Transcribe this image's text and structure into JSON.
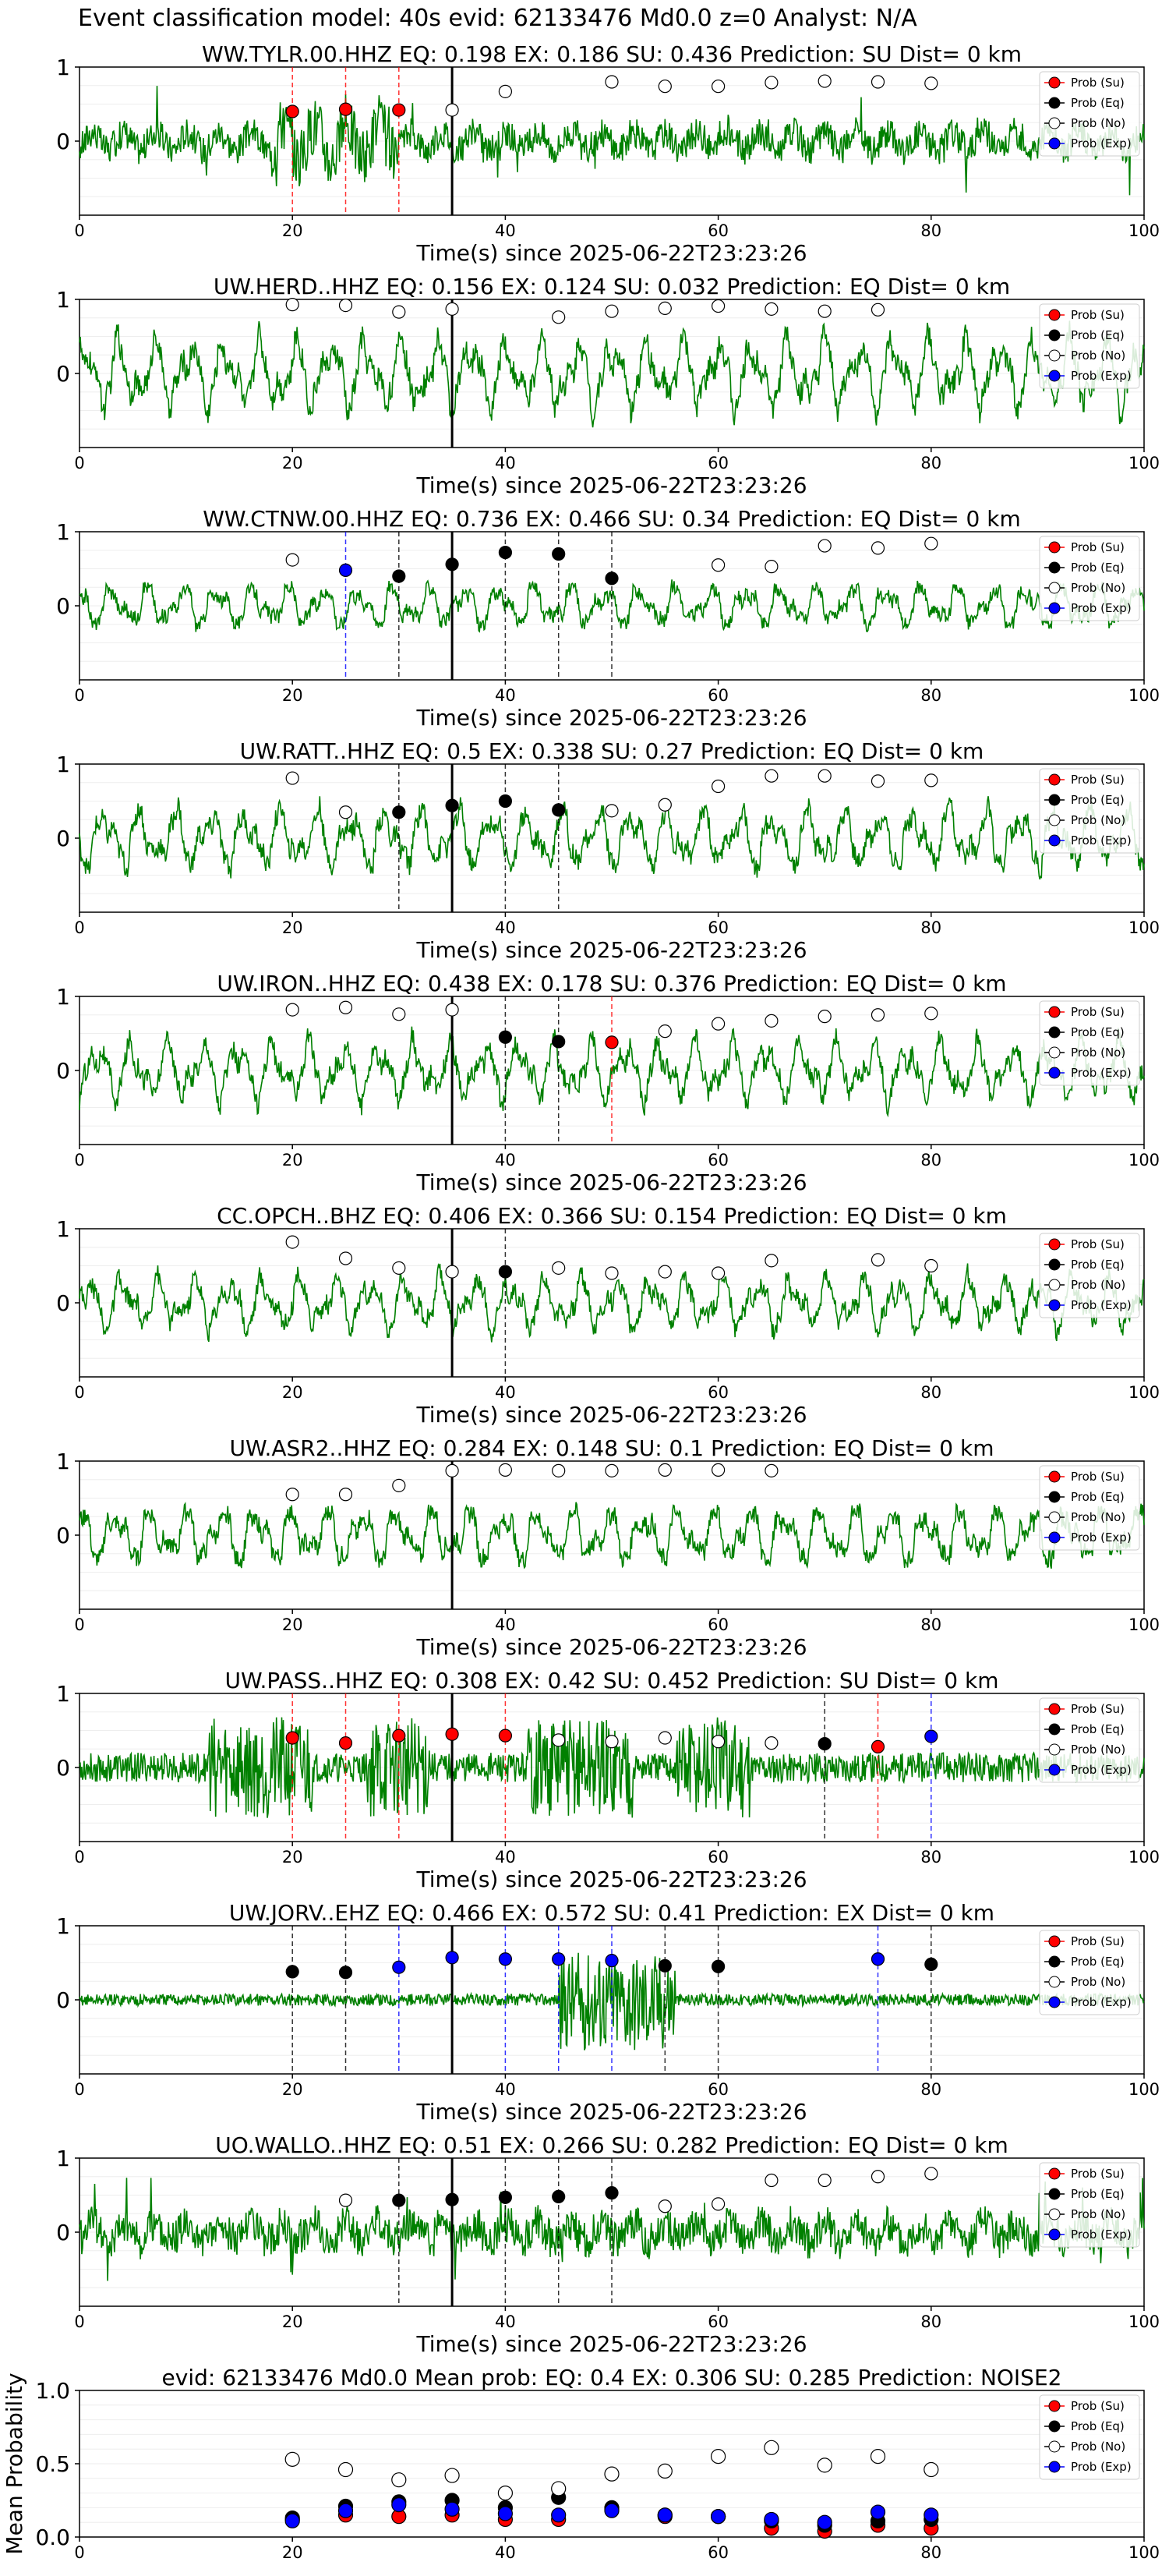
{
  "suptitle": "Event classification model: 40s evid: 62133476 Md0.0 z=0 Analyst: N/A",
  "colors": {
    "wave": "#008000",
    "su": "#ff0000",
    "eq": "#000000",
    "no": "#ffffff",
    "exp": "#0000ff",
    "su_line": "#ff0000",
    "eq_line": "#000000",
    "exp_line": "#0000ff"
  },
  "legend": [
    "Prob (Su)",
    "Prob (Eq)",
    "Prob (No)",
    "Prob (Exp)"
  ],
  "chart_data": [
    {
      "type": "line",
      "title": "WW.TYLR.00.HHZ   EQ: 0.198  EX: 0.186  SU: 0.436   Prediction: SU    Dist= 0 km",
      "xlabel": "Time(s) since 2025-06-22T23:23:26",
      "ylabel": "",
      "xlim": [
        0,
        100
      ],
      "ylim": [
        -1,
        1
      ],
      "yticks": [
        "1",
        "0"
      ],
      "xticks": [
        "0",
        "20",
        "40",
        "60",
        "80",
        "100"
      ],
      "event_time": 35,
      "waveform": {
        "style": "spiky",
        "amplitude": 0.45,
        "burst": [
          18,
          30
        ]
      },
      "picks": [
        {
          "t": 20,
          "p": 0.4,
          "cls": "su"
        },
        {
          "t": 25,
          "p": 0.43,
          "cls": "su"
        },
        {
          "t": 30,
          "p": 0.42,
          "cls": "su"
        },
        {
          "t": 35,
          "p": 0.42,
          "cls": "no"
        },
        {
          "t": 40,
          "p": 0.67,
          "cls": "no"
        },
        {
          "t": 50,
          "p": 0.8,
          "cls": "no"
        },
        {
          "t": 55,
          "p": 0.74,
          "cls": "no"
        },
        {
          "t": 60,
          "p": 0.74,
          "cls": "no"
        },
        {
          "t": 65,
          "p": 0.79,
          "cls": "no"
        },
        {
          "t": 70,
          "p": 0.81,
          "cls": "no"
        },
        {
          "t": 75,
          "p": 0.8,
          "cls": "no"
        },
        {
          "t": 80,
          "p": 0.78,
          "cls": "no"
        }
      ]
    },
    {
      "type": "line",
      "title": "UW.HERD..HHZ   EQ: 0.156  EX: 0.124  SU: 0.032   Prediction: EQ    Dist= 0 km",
      "xlabel": "Time(s) since 2025-06-22T23:23:26",
      "ylabel": "",
      "xlim": [
        0,
        100
      ],
      "ylim": [
        -1,
        1
      ],
      "yticks": [
        "1",
        "0"
      ],
      "xticks": [
        "0",
        "20",
        "40",
        "60",
        "80",
        "100"
      ],
      "event_time": 35,
      "waveform": {
        "style": "oscillating",
        "amplitude": 0.6
      },
      "picks": [
        {
          "t": 20,
          "p": 0.93,
          "cls": "no"
        },
        {
          "t": 25,
          "p": 0.92,
          "cls": "no"
        },
        {
          "t": 30,
          "p": 0.83,
          "cls": "no"
        },
        {
          "t": 35,
          "p": 0.87,
          "cls": "no"
        },
        {
          "t": 45,
          "p": 0.76,
          "cls": "no"
        },
        {
          "t": 50,
          "p": 0.84,
          "cls": "no"
        },
        {
          "t": 55,
          "p": 0.88,
          "cls": "no"
        },
        {
          "t": 60,
          "p": 0.91,
          "cls": "no"
        },
        {
          "t": 65,
          "p": 0.87,
          "cls": "no"
        },
        {
          "t": 70,
          "p": 0.84,
          "cls": "no"
        },
        {
          "t": 75,
          "p": 0.86,
          "cls": "no"
        }
      ]
    },
    {
      "type": "line",
      "title": "WW.CTNW.00.HHZ   EQ: 0.736  EX: 0.466  SU: 0.34   Prediction: EQ    Dist= 0 km",
      "xlabel": "Time(s) since 2025-06-22T23:23:26",
      "ylabel": "",
      "xlim": [
        0,
        100
      ],
      "ylim": [
        -1,
        1
      ],
      "yticks": [
        "1",
        "0"
      ],
      "xticks": [
        "0",
        "20",
        "40",
        "60",
        "80",
        "100"
      ],
      "event_time": 35,
      "waveform": {
        "style": "oscillating",
        "amplitude": 0.35
      },
      "picks": [
        {
          "t": 20,
          "p": 0.62,
          "cls": "no"
        },
        {
          "t": 25,
          "p": 0.48,
          "cls": "exp"
        },
        {
          "t": 30,
          "p": 0.4,
          "cls": "eq"
        },
        {
          "t": 35,
          "p": 0.56,
          "cls": "eq"
        },
        {
          "t": 40,
          "p": 0.72,
          "cls": "eq"
        },
        {
          "t": 45,
          "p": 0.7,
          "cls": "eq"
        },
        {
          "t": 50,
          "p": 0.37,
          "cls": "eq"
        },
        {
          "t": 60,
          "p": 0.55,
          "cls": "no"
        },
        {
          "t": 65,
          "p": 0.53,
          "cls": "no"
        },
        {
          "t": 70,
          "p": 0.81,
          "cls": "no"
        },
        {
          "t": 75,
          "p": 0.78,
          "cls": "no"
        },
        {
          "t": 80,
          "p": 0.84,
          "cls": "no"
        }
      ]
    },
    {
      "type": "line",
      "title": "UW.RATT..HHZ   EQ: 0.5  EX: 0.338  SU: 0.27   Prediction: EQ    Dist= 0 km",
      "xlabel": "Time(s) since 2025-06-22T23:23:26",
      "ylabel": "",
      "xlim": [
        0,
        100
      ],
      "ylim": [
        -1,
        1
      ],
      "yticks": [
        "1",
        "0"
      ],
      "xticks": [
        "0",
        "20",
        "40",
        "60",
        "80",
        "100"
      ],
      "event_time": 35,
      "waveform": {
        "style": "oscillating",
        "amplitude": 0.5
      },
      "picks": [
        {
          "t": 20,
          "p": 0.81,
          "cls": "no"
        },
        {
          "t": 25,
          "p": 0.35,
          "cls": "no"
        },
        {
          "t": 30,
          "p": 0.35,
          "cls": "eq"
        },
        {
          "t": 35,
          "p": 0.44,
          "cls": "eq"
        },
        {
          "t": 40,
          "p": 0.5,
          "cls": "eq"
        },
        {
          "t": 45,
          "p": 0.38,
          "cls": "eq"
        },
        {
          "t": 50,
          "p": 0.37,
          "cls": "no"
        },
        {
          "t": 55,
          "p": 0.45,
          "cls": "no"
        },
        {
          "t": 60,
          "p": 0.7,
          "cls": "no"
        },
        {
          "t": 65,
          "p": 0.84,
          "cls": "no"
        },
        {
          "t": 70,
          "p": 0.84,
          "cls": "no"
        },
        {
          "t": 75,
          "p": 0.77,
          "cls": "no"
        },
        {
          "t": 80,
          "p": 0.78,
          "cls": "no"
        }
      ]
    },
    {
      "type": "line",
      "title": "UW.IRON..HHZ   EQ: 0.438  EX: 0.178  SU: 0.376   Prediction: EQ    Dist= 0 km",
      "xlabel": "Time(s) since 2025-06-22T23:23:26",
      "ylabel": "",
      "xlim": [
        0,
        100
      ],
      "ylim": [
        -1,
        1
      ],
      "yticks": [
        "1",
        "0"
      ],
      "xticks": [
        "0",
        "20",
        "40",
        "60",
        "80",
        "100"
      ],
      "event_time": 35,
      "waveform": {
        "style": "oscillating",
        "amplitude": 0.5
      },
      "picks": [
        {
          "t": 20,
          "p": 0.82,
          "cls": "no"
        },
        {
          "t": 25,
          "p": 0.85,
          "cls": "no"
        },
        {
          "t": 30,
          "p": 0.76,
          "cls": "no"
        },
        {
          "t": 35,
          "p": 0.82,
          "cls": "no"
        },
        {
          "t": 40,
          "p": 0.45,
          "cls": "eq"
        },
        {
          "t": 45,
          "p": 0.39,
          "cls": "eq"
        },
        {
          "t": 50,
          "p": 0.38,
          "cls": "su"
        },
        {
          "t": 55,
          "p": 0.53,
          "cls": "no"
        },
        {
          "t": 60,
          "p": 0.63,
          "cls": "no"
        },
        {
          "t": 65,
          "p": 0.67,
          "cls": "no"
        },
        {
          "t": 70,
          "p": 0.73,
          "cls": "no"
        },
        {
          "t": 75,
          "p": 0.75,
          "cls": "no"
        },
        {
          "t": 80,
          "p": 0.77,
          "cls": "no"
        }
      ]
    },
    {
      "type": "line",
      "title": "CC.OPCH..BHZ   EQ: 0.406  EX: 0.366  SU: 0.154   Prediction: EQ    Dist= 0 km",
      "xlabel": "Time(s) since 2025-06-22T23:23:26",
      "ylabel": "",
      "xlim": [
        0,
        100
      ],
      "ylim": [
        -1,
        1
      ],
      "yticks": [
        "1",
        "0"
      ],
      "xticks": [
        "0",
        "20",
        "40",
        "60",
        "80",
        "100"
      ],
      "event_time": 35,
      "waveform": {
        "style": "oscillating",
        "amplitude": 0.45
      },
      "picks": [
        {
          "t": 20,
          "p": 0.82,
          "cls": "no"
        },
        {
          "t": 25,
          "p": 0.6,
          "cls": "no"
        },
        {
          "t": 30,
          "p": 0.47,
          "cls": "no"
        },
        {
          "t": 35,
          "p": 0.42,
          "cls": "no"
        },
        {
          "t": 40,
          "p": 0.42,
          "cls": "eq"
        },
        {
          "t": 45,
          "p": 0.47,
          "cls": "no"
        },
        {
          "t": 50,
          "p": 0.4,
          "cls": "no"
        },
        {
          "t": 55,
          "p": 0.42,
          "cls": "no"
        },
        {
          "t": 60,
          "p": 0.4,
          "cls": "no"
        },
        {
          "t": 65,
          "p": 0.57,
          "cls": "no"
        },
        {
          "t": 75,
          "p": 0.58,
          "cls": "no"
        },
        {
          "t": 80,
          "p": 0.5,
          "cls": "no"
        }
      ]
    },
    {
      "type": "line",
      "title": "UW.ASR2..HHZ   EQ: 0.284  EX: 0.148  SU: 0.1   Prediction: EQ    Dist= 0 km",
      "xlabel": "Time(s) since 2025-06-22T23:23:26",
      "ylabel": "",
      "xlim": [
        0,
        100
      ],
      "ylim": [
        -1,
        1
      ],
      "yticks": [
        "1",
        "0"
      ],
      "xticks": [
        "0",
        "20",
        "40",
        "60",
        "80",
        "100"
      ],
      "event_time": 35,
      "waveform": {
        "style": "oscillating",
        "amplitude": 0.45
      },
      "picks": [
        {
          "t": 20,
          "p": 0.55,
          "cls": "no"
        },
        {
          "t": 25,
          "p": 0.55,
          "cls": "no"
        },
        {
          "t": 30,
          "p": 0.67,
          "cls": "no"
        },
        {
          "t": 35,
          "p": 0.87,
          "cls": "no"
        },
        {
          "t": 40,
          "p": 0.88,
          "cls": "no"
        },
        {
          "t": 45,
          "p": 0.87,
          "cls": "no"
        },
        {
          "t": 50,
          "p": 0.87,
          "cls": "no"
        },
        {
          "t": 55,
          "p": 0.88,
          "cls": "no"
        },
        {
          "t": 60,
          "p": 0.88,
          "cls": "no"
        },
        {
          "t": 65,
          "p": 0.87,
          "cls": "no"
        }
      ]
    },
    {
      "type": "line",
      "title": "UW.PASS..HHZ   EQ: 0.308  EX: 0.42  SU: 0.452   Prediction: SU    Dist= 0 km",
      "xlabel": "Time(s) since 2025-06-22T23:23:26",
      "ylabel": "",
      "xlim": [
        0,
        100
      ],
      "ylim": [
        -1,
        1
      ],
      "yticks": [
        "1",
        "0"
      ],
      "xticks": [
        "0",
        "20",
        "40",
        "60",
        "80",
        "100"
      ],
      "event_time": 35,
      "waveform": {
        "style": "bursty",
        "amplitude": 0.25,
        "bursts": [
          [
            12,
            22
          ],
          [
            27,
            33
          ],
          [
            42,
            52
          ],
          [
            56,
            63
          ]
        ]
      },
      "picks": [
        {
          "t": 20,
          "p": 0.4,
          "cls": "su"
        },
        {
          "t": 25,
          "p": 0.33,
          "cls": "su"
        },
        {
          "t": 30,
          "p": 0.43,
          "cls": "su"
        },
        {
          "t": 35,
          "p": 0.45,
          "cls": "su"
        },
        {
          "t": 40,
          "p": 0.43,
          "cls": "su"
        },
        {
          "t": 45,
          "p": 0.37,
          "cls": "no"
        },
        {
          "t": 50,
          "p": 0.35,
          "cls": "no"
        },
        {
          "t": 55,
          "p": 0.4,
          "cls": "no"
        },
        {
          "t": 60,
          "p": 0.35,
          "cls": "no"
        },
        {
          "t": 65,
          "p": 0.33,
          "cls": "no"
        },
        {
          "t": 70,
          "p": 0.32,
          "cls": "eq"
        },
        {
          "t": 75,
          "p": 0.28,
          "cls": "su"
        },
        {
          "t": 80,
          "p": 0.42,
          "cls": "exp"
        }
      ]
    },
    {
      "type": "line",
      "title": "UW.JORV..EHZ   EQ: 0.466  EX: 0.572  SU: 0.41   Prediction: EX    Dist= 0 km",
      "xlabel": "Time(s) since 2025-06-22T23:23:26",
      "ylabel": "",
      "xlim": [
        0,
        100
      ],
      "ylim": [
        -1,
        1
      ],
      "yticks": [
        "1",
        "0"
      ],
      "xticks": [
        "0",
        "20",
        "40",
        "60",
        "80",
        "100"
      ],
      "event_time": 35,
      "waveform": {
        "style": "bursty",
        "amplitude": 0.1,
        "bursts": [
          [
            45,
            56
          ]
        ]
      },
      "picks": [
        {
          "t": 20,
          "p": 0.38,
          "cls": "eq"
        },
        {
          "t": 25,
          "p": 0.37,
          "cls": "eq"
        },
        {
          "t": 30,
          "p": 0.44,
          "cls": "exp"
        },
        {
          "t": 35,
          "p": 0.57,
          "cls": "exp"
        },
        {
          "t": 40,
          "p": 0.55,
          "cls": "exp"
        },
        {
          "t": 45,
          "p": 0.55,
          "cls": "exp"
        },
        {
          "t": 50,
          "p": 0.53,
          "cls": "exp"
        },
        {
          "t": 55,
          "p": 0.46,
          "cls": "eq"
        },
        {
          "t": 60,
          "p": 0.45,
          "cls": "eq"
        },
        {
          "t": 75,
          "p": 0.55,
          "cls": "exp"
        },
        {
          "t": 80,
          "p": 0.48,
          "cls": "eq"
        }
      ]
    },
    {
      "type": "line",
      "title": "UO.WALLO..HHZ   EQ: 0.51  EX: 0.266  SU: 0.282   Prediction: EQ    Dist= 0 km",
      "xlabel": "Time(s) since 2025-06-22T23:23:26",
      "ylabel": "",
      "xlim": [
        0,
        100
      ],
      "ylim": [
        -1,
        1
      ],
      "yticks": [
        "1",
        "0"
      ],
      "xticks": [
        "0",
        "20",
        "40",
        "60",
        "80",
        "100"
      ],
      "event_time": 35,
      "waveform": {
        "style": "spiky",
        "amplitude": 0.55
      },
      "picks": [
        {
          "t": 25,
          "p": 0.43,
          "cls": "no"
        },
        {
          "t": 30,
          "p": 0.43,
          "cls": "eq"
        },
        {
          "t": 35,
          "p": 0.44,
          "cls": "eq"
        },
        {
          "t": 40,
          "p": 0.47,
          "cls": "eq"
        },
        {
          "t": 45,
          "p": 0.48,
          "cls": "eq"
        },
        {
          "t": 50,
          "p": 0.53,
          "cls": "eq"
        },
        {
          "t": 55,
          "p": 0.35,
          "cls": "no"
        },
        {
          "t": 60,
          "p": 0.38,
          "cls": "no"
        },
        {
          "t": 65,
          "p": 0.7,
          "cls": "no"
        },
        {
          "t": 70,
          "p": 0.7,
          "cls": "no"
        },
        {
          "t": 75,
          "p": 0.75,
          "cls": "no"
        },
        {
          "t": 80,
          "p": 0.79,
          "cls": "no"
        }
      ]
    },
    {
      "type": "scatter",
      "title": "evid: 62133476  Md0.0   Mean prob:   EQ: 0.4  EX: 0.306  SU: 0.285   Prediction: NOISE2",
      "xlabel": "",
      "ylabel": "Mean Probability",
      "xlim": [
        0,
        100
      ],
      "ylim": [
        0,
        1
      ],
      "yticks": [
        "0.0",
        "0.5",
        "1.0"
      ],
      "xticks": [
        "0",
        "20",
        "40",
        "60",
        "80",
        "100"
      ],
      "t": [
        20,
        25,
        30,
        35,
        40,
        45,
        50,
        55,
        60,
        65,
        70,
        75,
        80
      ],
      "series": [
        {
          "name": "Prob (Su)",
          "cls": "su",
          "values": [
            0.12,
            0.15,
            0.14,
            0.15,
            0.12,
            0.12,
            0.19,
            0.14,
            0.14,
            0.06,
            0.04,
            0.08,
            0.06
          ]
        },
        {
          "name": "Prob (Eq)",
          "cls": "eq",
          "values": [
            0.13,
            0.21,
            0.24,
            0.25,
            0.2,
            0.27,
            0.2,
            0.15,
            0.14,
            0.11,
            0.08,
            0.11,
            0.12
          ]
        },
        {
          "name": "Prob (No)",
          "cls": "no",
          "values": [
            0.53,
            0.46,
            0.39,
            0.42,
            0.3,
            0.33,
            0.43,
            0.45,
            0.55,
            0.61,
            0.49,
            0.55,
            0.46
          ]
        },
        {
          "name": "Prob (Exp)",
          "cls": "exp",
          "values": [
            0.11,
            0.18,
            0.22,
            0.19,
            0.16,
            0.15,
            0.18,
            0.15,
            0.14,
            0.12,
            0.1,
            0.17,
            0.15
          ]
        }
      ]
    }
  ]
}
